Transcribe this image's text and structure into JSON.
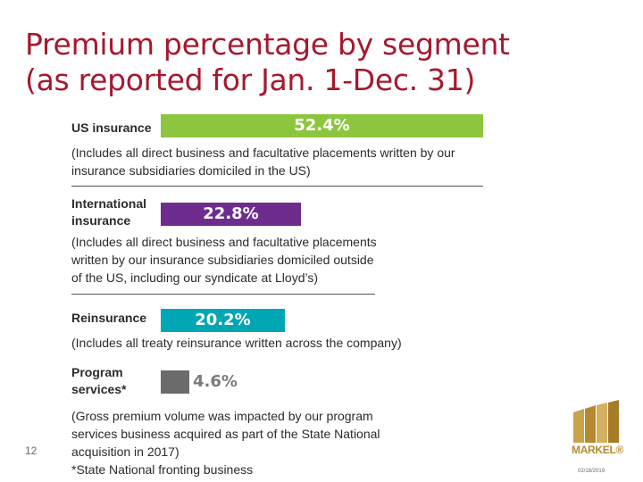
{
  "title": {
    "line1": "Premium percentage by segment",
    "line2": "(as reported for Jan. 1-Dec. 31)"
  },
  "chart_data": {
    "type": "bar",
    "orientation": "horizontal",
    "categories": [
      "US insurance",
      "International insurance",
      "Reinsurance",
      "Program services*"
    ],
    "values": [
      52.4,
      22.8,
      20.2,
      4.6
    ],
    "value_labels": [
      "52.4%",
      "22.8%",
      "20.2%",
      "4.6%"
    ],
    "colors": [
      "#8cc63f",
      "#6e2d8e",
      "#00a6b4",
      "#6b6b6d"
    ],
    "unit": "%",
    "xlim": [
      0,
      52.4
    ]
  },
  "segments": [
    {
      "label_lines": [
        "US insurance"
      ],
      "desc_lines": [
        "(Includes all direct business and facultative placements written by our",
        "insurance subsidiaries domiciled in the US)"
      ]
    },
    {
      "label_lines": [
        "International",
        "insurance"
      ],
      "desc_lines": [
        "(Includes all direct business and facultative placements",
        "written by our insurance subsidiaries domiciled outside",
        "of the US, including our syndicate at Lloyd’s)"
      ]
    },
    {
      "label_lines": [
        "Reinsurance"
      ],
      "desc_lines": [
        "(Includes all treaty reinsurance written across the company)"
      ]
    },
    {
      "label_lines": [
        "Program",
        "services*"
      ],
      "desc_lines": [
        "(Gross premium volume was impacted by our program",
        "services business acquired as part of the State National",
        "acquisition in 2017)",
        "*State National fronting business"
      ]
    }
  ],
  "footer": {
    "page_number": "12",
    "date": "02/18/2019",
    "logo_text": "MARKEL®"
  }
}
